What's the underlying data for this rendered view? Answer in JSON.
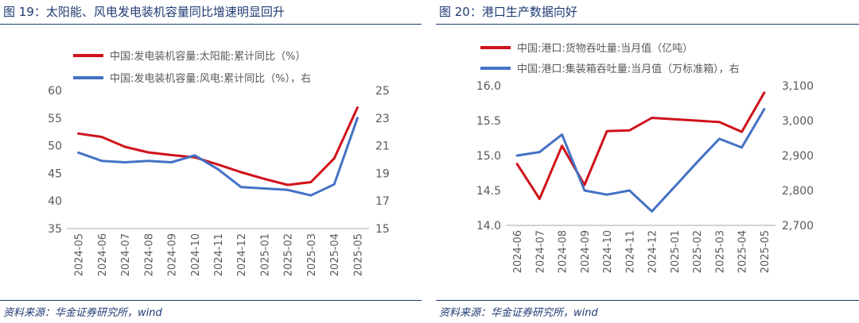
{
  "colors": {
    "red": "#d0121b",
    "blue": "#4472c4",
    "axis": "#595959",
    "title": "#1f3b73"
  },
  "chart_data": [
    {
      "type": "line",
      "title": "图 19：太阳能、风电发电装机容量同比增速明显回升",
      "source": "资料来源：华金证券研究所，wind",
      "categories": [
        "2024-05",
        "2024-06",
        "2024-07",
        "2024-08",
        "2024-09",
        "2024-10",
        "2024-11",
        "2024-12",
        "2025-01",
        "2025-02",
        "2025-03",
        "2025-04",
        "2025-05"
      ],
      "series": [
        {
          "name": "中国:发电装机容量:太阳能:累计同比（%）",
          "axis": "left",
          "color": "#d0121b",
          "values": [
            52.2,
            51.6,
            49.8,
            48.8,
            48.3,
            47.9,
            46.6,
            45.2,
            44.0,
            42.9,
            43.4,
            47.7,
            56.9
          ]
        },
        {
          "name": "中国:发电装机容量:风电:累计同比（%），右",
          "axis": "right",
          "color": "#4472c4",
          "values": [
            20.5,
            19.9,
            19.8,
            19.9,
            19.8,
            20.3,
            19.3,
            18.0,
            17.9,
            17.8,
            17.4,
            18.2,
            23.0
          ]
        }
      ],
      "ylim_left": [
        35,
        60
      ],
      "yticks_left": [
        35,
        40,
        45,
        50,
        55,
        60
      ],
      "ylim_right": [
        15,
        25
      ],
      "yticks_right": [
        15,
        17,
        19,
        21,
        23,
        25
      ],
      "legend": "top-left",
      "grid": false
    },
    {
      "type": "line",
      "title": "图 20：港口生产数据向好",
      "source": "资料来源：华金证券研究所，wind",
      "categories": [
        "2024-06",
        "2024-07",
        "2024-08",
        "2024-09",
        "2024-10",
        "2024-11",
        "2024-12",
        "2025-01",
        "2025-02",
        "2025-03",
        "2025-04",
        "2025-05"
      ],
      "series": [
        {
          "name": "中国:港口:货物吞吐量:当月值（亿吨）",
          "axis": "left",
          "color": "#d0121b",
          "values": [
            14.88,
            14.38,
            15.14,
            14.58,
            15.35,
            15.36,
            15.54,
            15.52,
            15.5,
            15.48,
            15.34,
            15.9
          ],
          "break_before": [
            7,
            8
          ]
        },
        {
          "name": "中国:港口:集装箱吞吐量:当月值（万标准箱），右",
          "axis": "right",
          "color": "#4472c4",
          "values": [
            2900,
            2910,
            2960,
            2800,
            2788,
            2800,
            2740,
            2810,
            2880,
            2948,
            2923,
            3033
          ],
          "break_before": [
            7,
            8
          ]
        }
      ],
      "ylim_left": [
        14.0,
        16.0
      ],
      "yticks_left": [
        "14.0",
        "14.5",
        "15.0",
        "15.5",
        "16.0"
      ],
      "ylim_right": [
        2700,
        3100
      ],
      "yticks_right": [
        "2,700",
        "2,800",
        "2,900",
        "3,000",
        "3,100"
      ],
      "legend": "top-left",
      "grid": false
    }
  ]
}
